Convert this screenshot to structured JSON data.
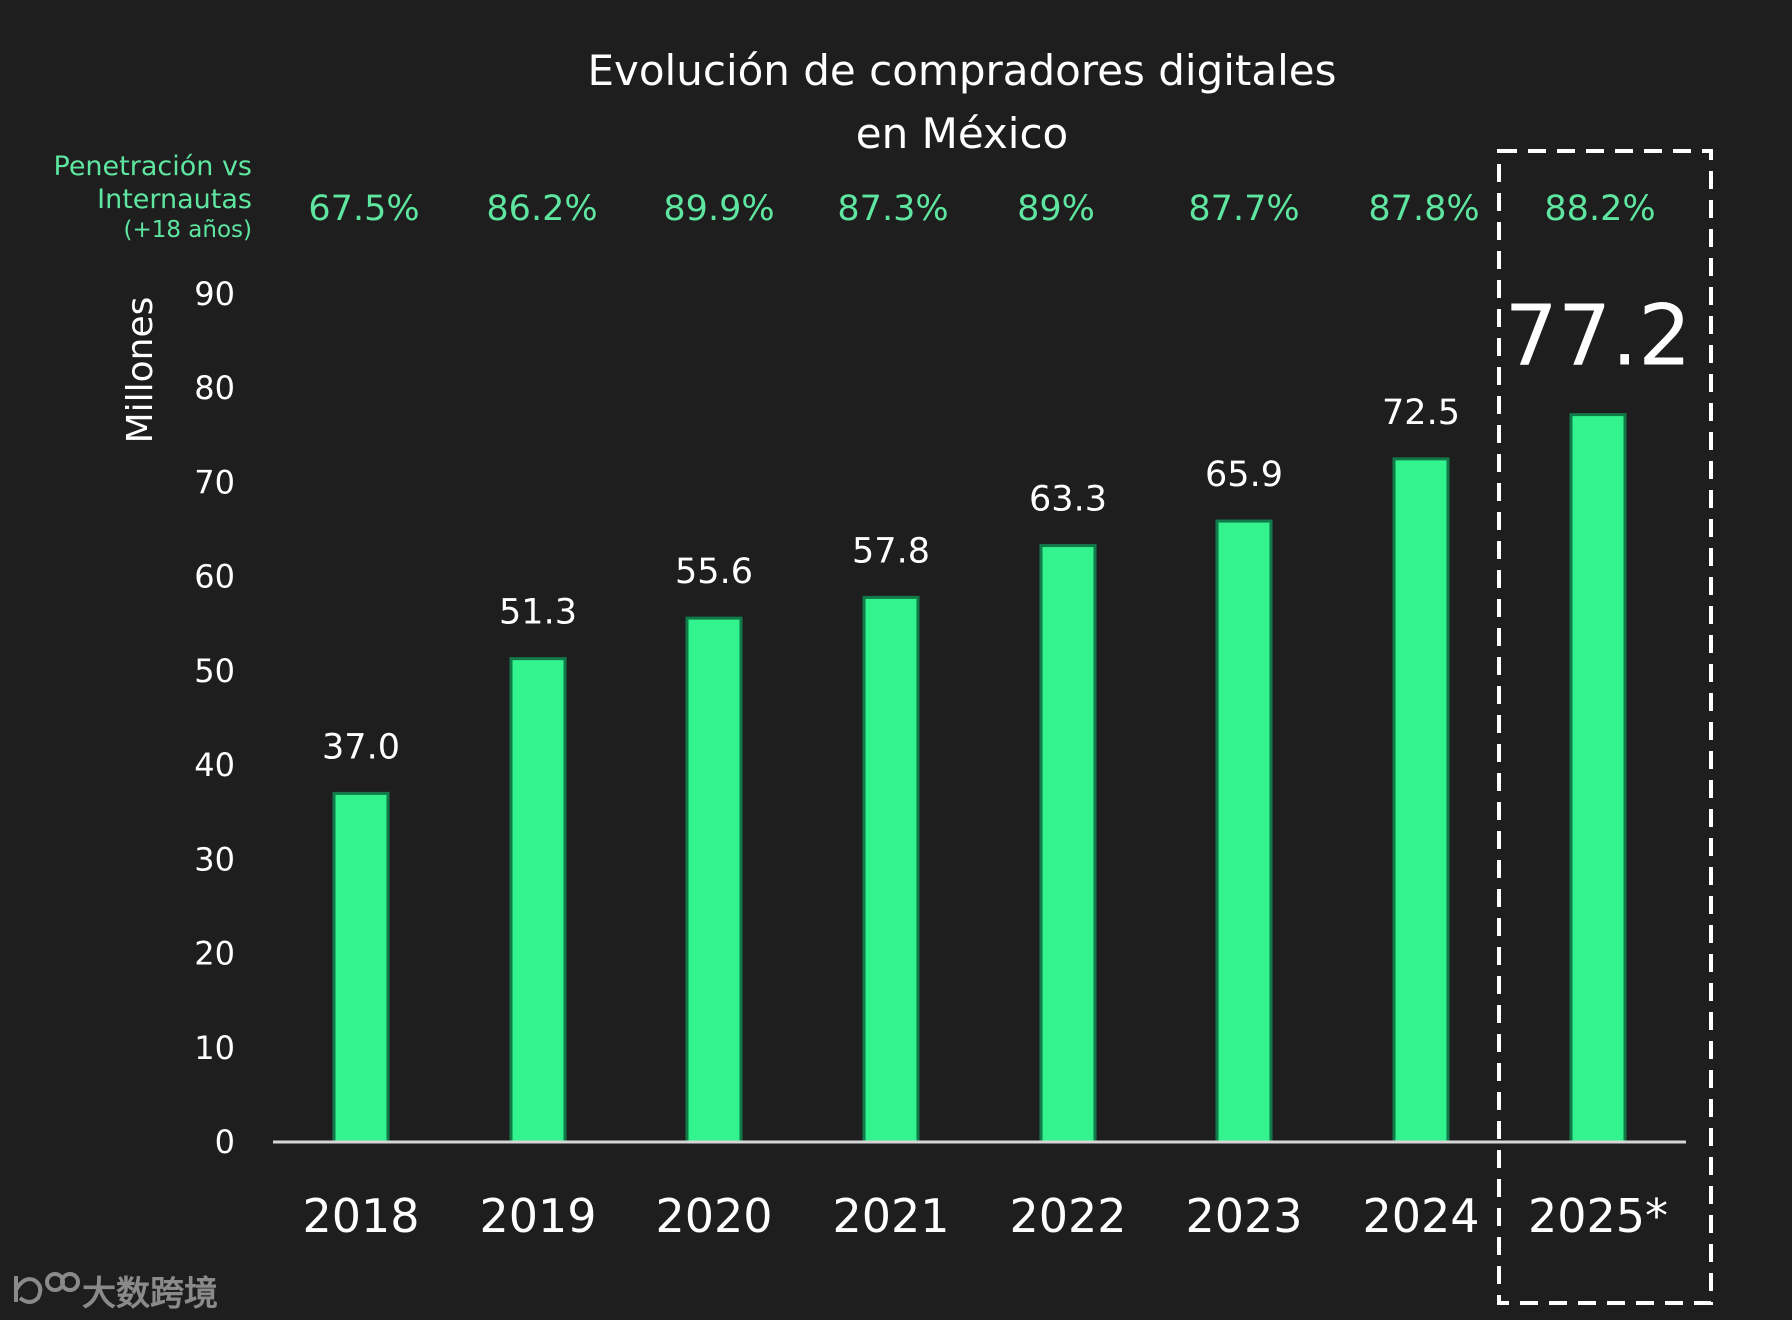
{
  "chart_data": {
    "type": "bar",
    "title": [
      "Evolución de compradores digitales",
      "en México"
    ],
    "ylabel": "Millones",
    "xlabel": "",
    "ylim": [
      0,
      90
    ],
    "yticks": [
      "0",
      "10",
      "20",
      "30",
      "40",
      "50",
      "60",
      "70",
      "80",
      "90"
    ],
    "categories": [
      "2018",
      "2019",
      "2020",
      "2021",
      "2022",
      "2023",
      "2024",
      "2025*"
    ],
    "values": [
      37.0,
      51.3,
      55.6,
      57.8,
      63.3,
      65.9,
      72.5,
      77.2
    ],
    "value_labels": [
      "37.0",
      "51.3",
      "55.6",
      "57.8",
      "63.3",
      "65.9",
      "72.5",
      "77.2"
    ],
    "penetration": {
      "label_lines": [
        "Penetración vs",
        "Internautas",
        "(+18 años)"
      ],
      "values": [
        "67.5%",
        "86.2%",
        "89.9%",
        "87.3%",
        "89%",
        "87.7%",
        "87.8%",
        "88.2%"
      ]
    },
    "highlight": "2025*",
    "grid": false,
    "legend": "none"
  },
  "colors": {
    "background": "#1e1e1e",
    "bar": "#33f38e",
    "bar_border": "#127a49",
    "penetration_text": "#5ee6a0",
    "text": "#ffffff"
  },
  "watermark": {
    "icon": "logo-icon",
    "text": "大数跨境"
  }
}
